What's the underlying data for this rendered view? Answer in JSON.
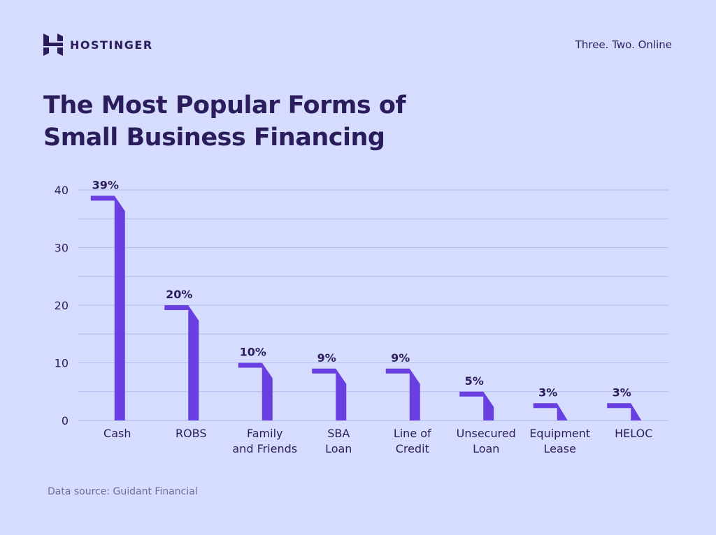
{
  "brand": {
    "name": "HOSTINGER",
    "tagline": "Three. Two. Online"
  },
  "title": "The Most Popular Forms of Small Business Financing",
  "source": "Data source: Guidant Financial",
  "colors": {
    "background": "#d5dcfd",
    "bar": "#6a3fe2",
    "text": "#2b1d5c",
    "gridline": "#b5bcef"
  },
  "chart_data": {
    "type": "bar",
    "categories": [
      [
        "Cash"
      ],
      [
        "ROBS"
      ],
      [
        "Family",
        "and Friends"
      ],
      [
        "SBA",
        "Loan"
      ],
      [
        "Line of",
        "Credit"
      ],
      [
        "Unsecured",
        "Loan"
      ],
      [
        "Equipment",
        "Lease"
      ],
      [
        "HELOC"
      ]
    ],
    "values": [
      39,
      20,
      10,
      9,
      9,
      5,
      3,
      3
    ],
    "data_labels": [
      "39%",
      "20%",
      "10%",
      "9%",
      "9%",
      "5%",
      "3%",
      "3%"
    ],
    "yticks": [
      "0",
      "10",
      "20",
      "30",
      "40"
    ],
    "ylim": [
      0,
      40
    ],
    "grid": true,
    "xlabel": "",
    "ylabel": ""
  }
}
